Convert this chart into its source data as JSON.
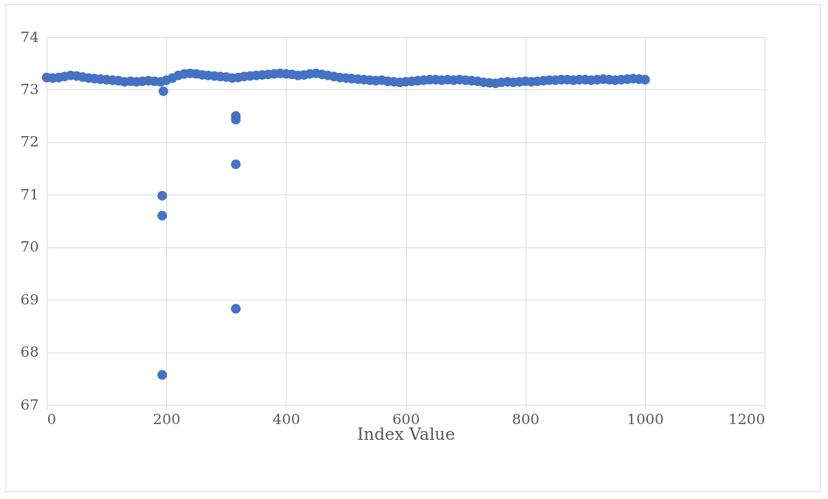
{
  "chart_data": {
    "type": "scatter",
    "xlabel": "Index Value",
    "marker": "circle",
    "grid": true,
    "xlim": [
      0,
      1200
    ],
    "xticks": [
      0,
      200,
      400,
      600,
      800,
      1000,
      1200
    ],
    "ylim": [
      67,
      74
    ],
    "yticks": [
      67,
      68,
      69,
      70,
      71,
      72,
      73,
      74
    ],
    "series": [
      {
        "color": "#4472c4",
        "x": [
          0,
          10,
          20,
          30,
          40,
          50,
          60,
          70,
          80,
          90,
          100,
          110,
          120,
          130,
          140,
          150,
          160,
          170,
          180,
          190,
          195,
          200,
          210,
          220,
          230,
          240,
          250,
          260,
          270,
          280,
          290,
          300,
          310,
          320,
          330,
          340,
          350,
          360,
          370,
          380,
          390,
          400,
          410,
          420,
          430,
          440,
          450,
          460,
          470,
          480,
          490,
          500,
          510,
          520,
          530,
          540,
          550,
          560,
          570,
          580,
          590,
          600,
          610,
          620,
          630,
          640,
          650,
          660,
          670,
          680,
          690,
          700,
          710,
          720,
          730,
          740,
          750,
          760,
          770,
          780,
          790,
          800,
          810,
          820,
          830,
          840,
          850,
          860,
          870,
          880,
          890,
          900,
          910,
          920,
          930,
          940,
          950,
          960,
          970,
          980,
          990,
          1000,
          193,
          193,
          193,
          316,
          316,
          316,
          316
        ],
        "values": [
          73.23,
          73.22,
          73.23,
          73.25,
          73.27,
          73.26,
          73.24,
          73.22,
          73.21,
          73.2,
          73.19,
          73.18,
          73.17,
          73.15,
          73.16,
          73.15,
          73.16,
          73.17,
          73.16,
          73.15,
          72.97,
          73.18,
          73.22,
          73.27,
          73.3,
          73.31,
          73.3,
          73.28,
          73.27,
          73.26,
          73.25,
          73.24,
          73.22,
          73.23,
          73.25,
          73.26,
          73.27,
          73.28,
          73.29,
          73.3,
          73.31,
          73.3,
          73.29,
          73.27,
          73.28,
          73.3,
          73.31,
          73.29,
          73.27,
          73.25,
          73.23,
          73.22,
          73.21,
          73.2,
          73.19,
          73.18,
          73.17,
          73.18,
          73.16,
          73.15,
          73.14,
          73.15,
          73.16,
          73.17,
          73.18,
          73.19,
          73.19,
          73.18,
          73.19,
          73.18,
          73.19,
          73.18,
          73.17,
          73.16,
          73.14,
          73.13,
          73.12,
          73.14,
          73.15,
          73.14,
          73.15,
          73.16,
          73.15,
          73.16,
          73.17,
          73.18,
          73.18,
          73.19,
          73.19,
          73.18,
          73.19,
          73.19,
          73.18,
          73.19,
          73.2,
          73.19,
          73.18,
          73.19,
          73.2,
          73.21,
          73.2,
          73.19,
          70.98,
          70.6,
          67.57,
          72.5,
          72.43,
          71.58,
          68.83
        ]
      }
    ]
  }
}
